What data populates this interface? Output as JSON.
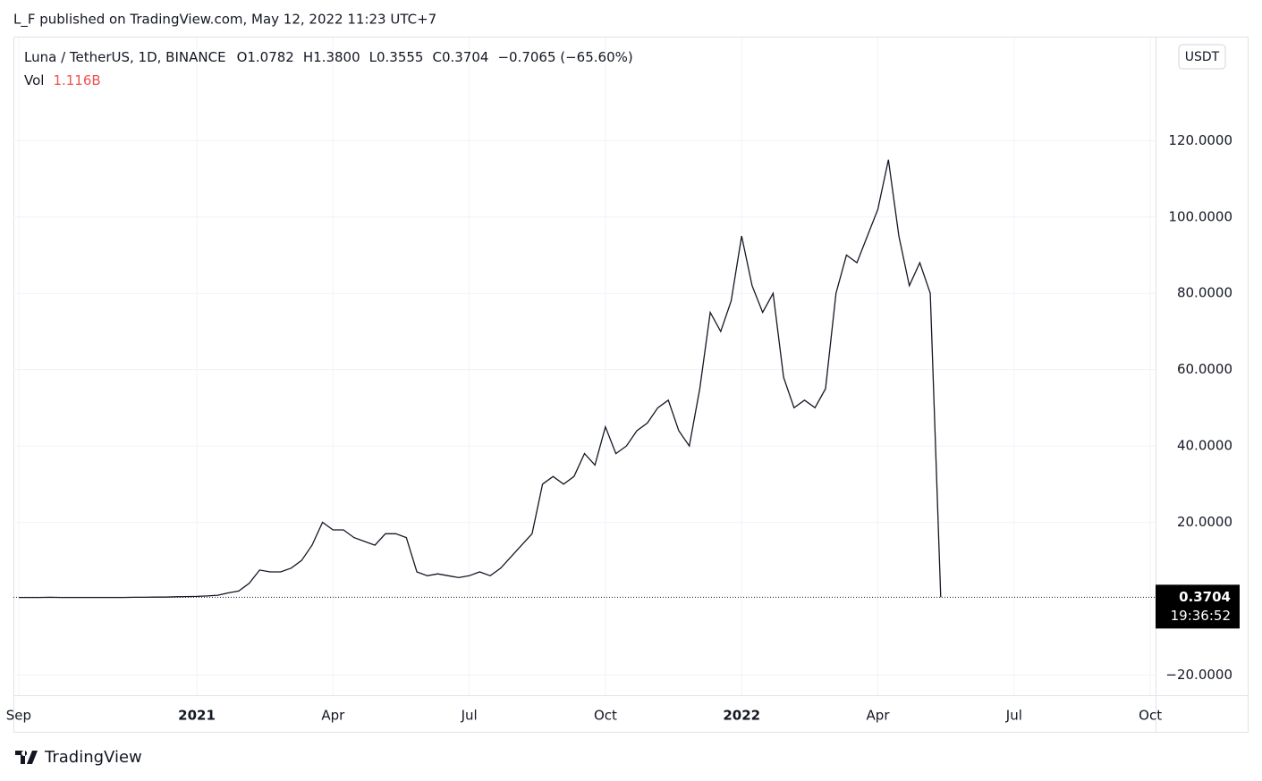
{
  "header": {
    "publisher": "L_F published on TradingView.com, May 12, 2022 11:23 UTC+7",
    "symbol": "Luna / TetherUS, 1D, BINANCE",
    "open": "O1.0782",
    "high": "H1.3800",
    "low": "L0.3555",
    "close": "C0.3704",
    "change": "−0.7065 (−65.60%)",
    "volume_label": "Vol",
    "volume": "1.116B",
    "currency": "USDT",
    "countdown": "19:36:52"
  },
  "footer": {
    "brand": "TradingView"
  },
  "chart_data": {
    "type": "line",
    "color": "#131722",
    "categories": [
      "Sep",
      null,
      null,
      null,
      null,
      null,
      null,
      null,
      null,
      null,
      null,
      null,
      null,
      null,
      null,
      null,
      null,
      "2021",
      null,
      null,
      null,
      null,
      null,
      null,
      null,
      null,
      null,
      null,
      null,
      null,
      "Apr",
      null,
      null,
      null,
      null,
      null,
      null,
      null,
      null,
      null,
      null,
      null,
      null,
      "Jul",
      null,
      null,
      null,
      null,
      null,
      null,
      null,
      null,
      null,
      null,
      null,
      null,
      "Oct",
      null,
      null,
      null,
      null,
      null,
      null,
      null,
      null,
      null,
      null,
      null,
      null,
      "2022",
      null,
      null,
      null,
      null,
      null,
      null,
      null,
      null,
      null,
      null,
      null,
      null,
      "Apr",
      null,
      null,
      null,
      null,
      null,
      null,
      null,
      null,
      null,
      null,
      null,
      null,
      "Jul",
      null,
      null,
      null,
      null,
      null,
      null,
      null,
      null,
      null,
      null,
      null,
      null,
      "Oct"
    ],
    "values": [
      0.3,
      0.3,
      0.3,
      0.35,
      0.3,
      0.3,
      0.3,
      0.3,
      0.3,
      0.3,
      0.3,
      0.35,
      0.35,
      0.4,
      0.4,
      0.5,
      0.55,
      0.6,
      0.7,
      0.9,
      1.5,
      2,
      4,
      7.5,
      7,
      7,
      8,
      10,
      14,
      20,
      18,
      18,
      16,
      15,
      14,
      17,
      17,
      16,
      7,
      6,
      6.5,
      6,
      5.5,
      6,
      7,
      6,
      8,
      11,
      14,
      17,
      30,
      32,
      30,
      32,
      38,
      35,
      45,
      38,
      40,
      44,
      46,
      50,
      52,
      44,
      40,
      55,
      75,
      70,
      78,
      95,
      82,
      75,
      80,
      58,
      50,
      52,
      50,
      55,
      80,
      90,
      88,
      95,
      102,
      115,
      95,
      82,
      88,
      80,
      0.3704,
      null,
      null,
      null,
      null,
      null,
      null,
      null,
      null,
      null,
      null,
      null,
      null,
      null,
      null,
      null,
      null,
      null,
      null,
      null,
      null
    ],
    "last_price": 0.3704,
    "ylim": [
      -25.3,
      147
    ],
    "yticks": [
      {
        "value": -20,
        "label": "−20.0000"
      },
      {
        "value": 20,
        "label": "20.0000"
      },
      {
        "value": 40,
        "label": "40.0000"
      },
      {
        "value": 60,
        "label": "60.0000"
      },
      {
        "value": 80,
        "label": "80.0000"
      },
      {
        "value": 100,
        "label": "100.0000"
      },
      {
        "value": 120,
        "label": "120.0000"
      }
    ],
    "grid": true
  }
}
